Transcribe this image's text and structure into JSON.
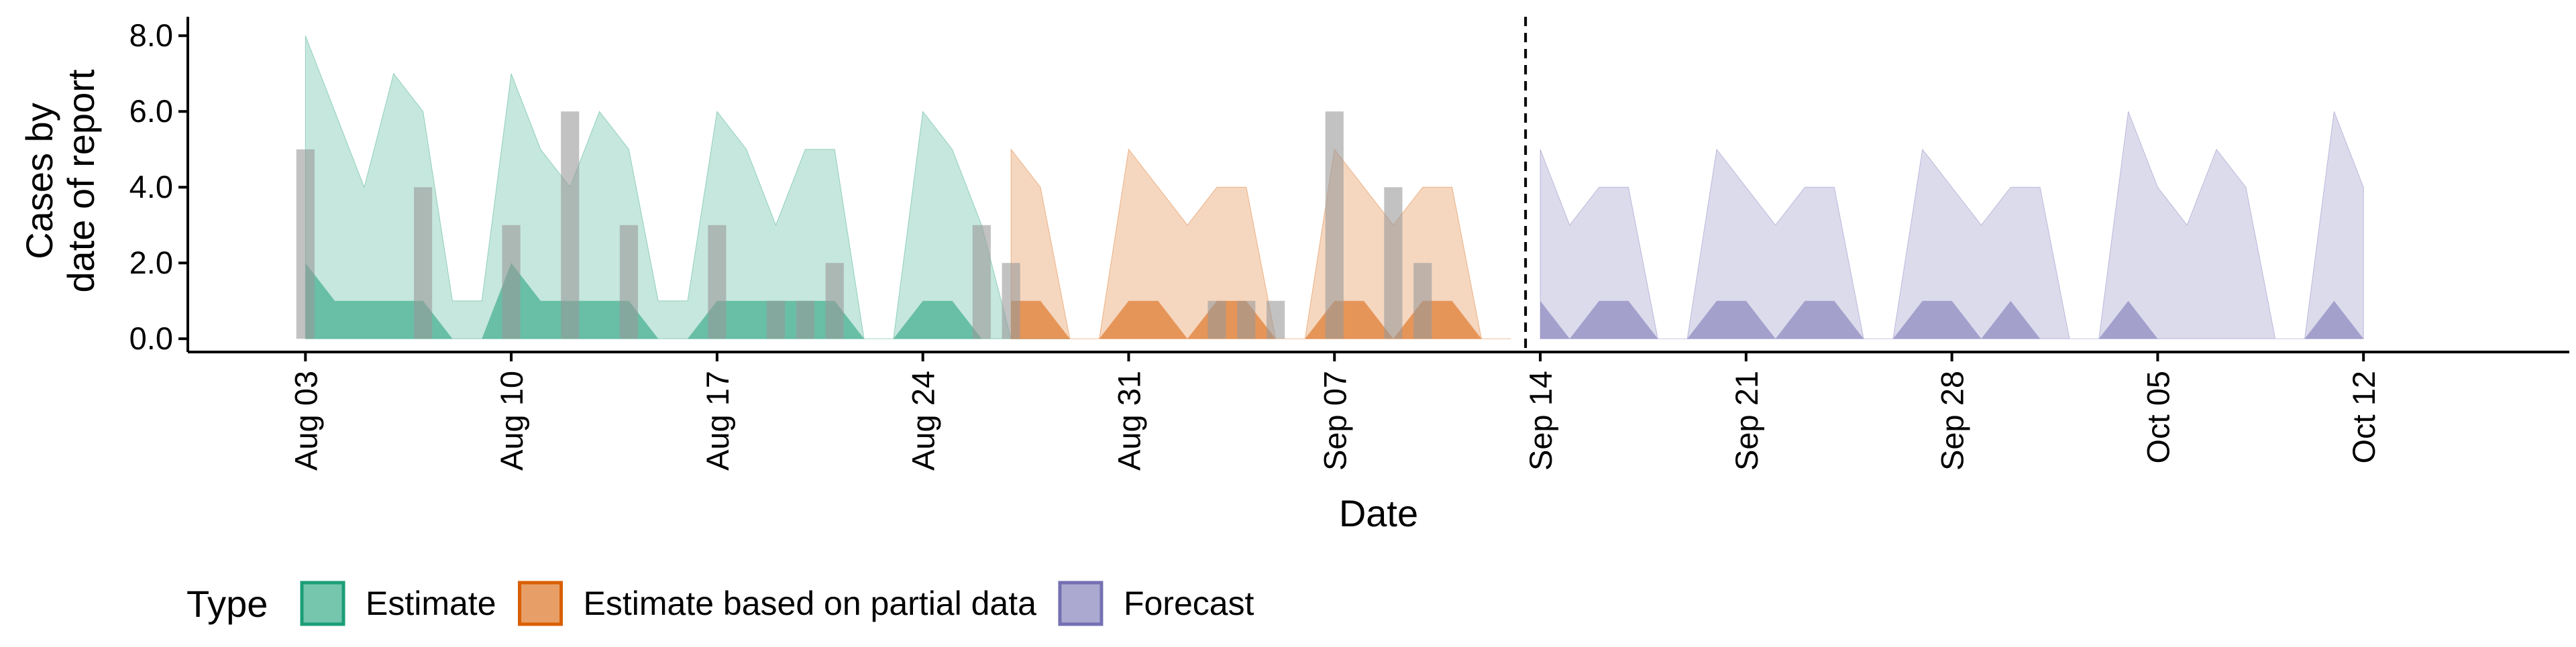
{
  "chart_data": {
    "type": "area",
    "xlabel": "Date",
    "ylabel_lines": [
      "Cases by",
      "date of report"
    ],
    "y_ticks": [
      "0.0",
      "2.0",
      "4.0",
      "6.0",
      "8.0"
    ],
    "ylim": [
      -0.35,
      8.5
    ],
    "x_ticks": [
      "Aug 03",
      "Aug 10",
      "Aug 17",
      "Aug 24",
      "Aug 31",
      "Sep 07",
      "Sep 14",
      "Sep 21",
      "Sep 28",
      "Oct 05",
      "Oct 12"
    ],
    "x_start": "2020-08-03",
    "xlim_days": [
      -4,
      77
    ],
    "forecast_line_day": 41.5,
    "legend_title": "Type",
    "legend_position": "bottom",
    "colors": {
      "Estimate": "#1b9e77",
      "Estimate based on partial data": "#d95f02",
      "Forecast": "#7570b3",
      "reported": "#9a9a9a"
    },
    "series": [
      {
        "name": "Estimate",
        "x": [
          0,
          1,
          2,
          3,
          4,
          5,
          6,
          7,
          8,
          9,
          10,
          11,
          12,
          13,
          14,
          15,
          16,
          17,
          18,
          19,
          20,
          21,
          22,
          23,
          24,
          25,
          26
        ],
        "upper": [
          8,
          6,
          4,
          7,
          6,
          1,
          1,
          7,
          5,
          4,
          6,
          5,
          1,
          1,
          6,
          5,
          3,
          5,
          5,
          0,
          0,
          6,
          5,
          3,
          0,
          0,
          0
        ],
        "lower": [
          2,
          1,
          1,
          1,
          1,
          0,
          0,
          2,
          1,
          1,
          1,
          1,
          0,
          0,
          1,
          1,
          1,
          1,
          1,
          0,
          0,
          1,
          1,
          0,
          0,
          0,
          0
        ],
        "x_end": 23
      },
      {
        "name": "Estimate based on partial data",
        "x": [
          24,
          25,
          26,
          27,
          28,
          29,
          30,
          31,
          32,
          33,
          34,
          35,
          36,
          37,
          38,
          39,
          40,
          41
        ],
        "upper": [
          5,
          4,
          0,
          0,
          5,
          4,
          3,
          4,
          4,
          0,
          0,
          5,
          4,
          3,
          4,
          4,
          0,
          0
        ],
        "lower": [
          1,
          1,
          0,
          0,
          1,
          1,
          0,
          1,
          1,
          0,
          0,
          1,
          1,
          0,
          1,
          1,
          0,
          0
        ]
      },
      {
        "name": "Forecast",
        "x": [
          42,
          43,
          44,
          45,
          46,
          47,
          48,
          49,
          50,
          51,
          52,
          53,
          54,
          55,
          56,
          57,
          58,
          59,
          60,
          61,
          62,
          63,
          64,
          65,
          66,
          67,
          68,
          69,
          70
        ],
        "upper": [
          5,
          3,
          4,
          4,
          0,
          0,
          5,
          4,
          3,
          4,
          4,
          0,
          0,
          5,
          4,
          3,
          4,
          4,
          0,
          0,
          6,
          4,
          3,
          5,
          4,
          0,
          0,
          6,
          4
        ],
        "lower": [
          1,
          0,
          1,
          1,
          0,
          0,
          1,
          1,
          0,
          1,
          1,
          0,
          0,
          1,
          1,
          0,
          1,
          0,
          0,
          0,
          1,
          0,
          0,
          0,
          0,
          0,
          0,
          1,
          0
        ]
      }
    ],
    "reported_cases": {
      "x": [
        0,
        4,
        7,
        9,
        11,
        14,
        16,
        17,
        18,
        23,
        24,
        31,
        32,
        33,
        35,
        37,
        38
      ],
      "values": [
        5,
        4,
        3,
        6,
        3,
        3,
        1,
        1,
        2,
        3,
        2,
        1,
        1,
        1,
        6,
        4,
        2
      ]
    }
  }
}
